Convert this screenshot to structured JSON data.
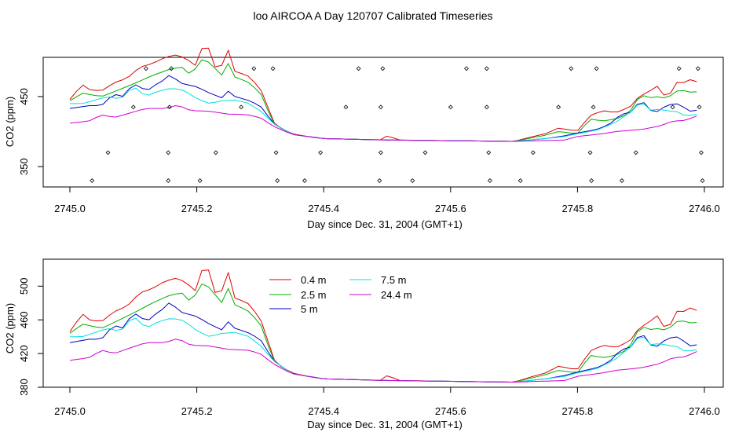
{
  "figure": {
    "title": "loo AIRCOA A  Day 120707  Calibrated Timeseries"
  },
  "chart_data": [
    {
      "type": "line",
      "title": "",
      "xlabel": "Day since Dec. 31, 2004 (GMT+1)",
      "ylabel": "CO2 (ppm)",
      "xlim": [
        2745.0,
        2746.0
      ],
      "ylim": [
        321,
        506
      ],
      "xticks": [
        "2745.0",
        "2745.2",
        "2745.4",
        "2745.6",
        "2745.8",
        "2746.0"
      ],
      "yticks": [
        "350",
        "450"
      ],
      "grid": false,
      "legend": null,
      "markers_series": {
        "name": "",
        "points": [
          [
            2745.035,
            330
          ],
          [
            2745.06,
            370
          ],
          [
            2745.1,
            435
          ],
          [
            2745.12,
            490
          ],
          [
            2745.155,
            330
          ],
          [
            2745.155,
            370
          ],
          [
            2745.157,
            435
          ],
          [
            2745.16,
            490
          ],
          [
            2745.205,
            330
          ],
          [
            2745.23,
            370
          ],
          [
            2745.27,
            435
          ],
          [
            2745.29,
            490
          ],
          [
            2745.32,
            490
          ],
          [
            2745.325,
            370
          ],
          [
            2745.327,
            330
          ],
          [
            2745.37,
            330
          ],
          [
            2745.395,
            370
          ],
          [
            2745.435,
            435
          ],
          [
            2745.455,
            490
          ],
          [
            2745.488,
            330
          ],
          [
            2745.49,
            370
          ],
          [
            2745.49,
            435
          ],
          [
            2745.493,
            490
          ],
          [
            2745.54,
            330
          ],
          [
            2745.56,
            370
          ],
          [
            2745.6,
            435
          ],
          [
            2745.625,
            490
          ],
          [
            2745.657,
            490
          ],
          [
            2745.657,
            435
          ],
          [
            2745.66,
            370
          ],
          [
            2745.662,
            330
          ],
          [
            2745.71,
            330
          ],
          [
            2745.73,
            370
          ],
          [
            2745.77,
            435
          ],
          [
            2745.79,
            490
          ],
          [
            2745.82,
            370
          ],
          [
            2745.822,
            330
          ],
          [
            2745.825,
            435
          ],
          [
            2745.83,
            490
          ],
          [
            2745.87,
            330
          ],
          [
            2745.892,
            370
          ],
          [
            2745.95,
            435
          ],
          [
            2745.96,
            490
          ],
          [
            2745.99,
            490
          ],
          [
            2745.992,
            435
          ],
          [
            2745.995,
            370
          ],
          [
            2745.997,
            330
          ]
        ]
      }
    },
    {
      "type": "line",
      "title": "",
      "xlabel": "Day since Dec. 31, 2004 (GMT+1)",
      "ylabel": "CO2 (ppm)",
      "xlim": [
        2745.0,
        2746.0
      ],
      "ylim": [
        380,
        532
      ],
      "xticks": [
        "2745.0",
        "2745.2",
        "2745.4",
        "2745.6",
        "2745.8",
        "2746.0"
      ],
      "yticks": [
        "380",
        "420",
        "460",
        "500"
      ],
      "grid": false,
      "legend": "top-center"
    }
  ],
  "series": [
    {
      "name": "0.4 m",
      "color": "#e00000",
      "keypoints": [
        [
          2745.0,
          446
        ],
        [
          2745.01,
          457
        ],
        [
          2745.02,
          467
        ],
        [
          2745.03,
          460
        ],
        [
          2745.05,
          458
        ],
        [
          2745.07,
          470
        ],
        [
          2745.09,
          476
        ],
        [
          2745.11,
          492
        ],
        [
          2745.13,
          497
        ],
        [
          2745.15,
          506
        ],
        [
          2745.17,
          510
        ],
        [
          2745.19,
          500
        ],
        [
          2745.2,
          493
        ],
        [
          2745.21,
          525
        ],
        [
          2745.22,
          518
        ],
        [
          2745.23,
          489
        ],
        [
          2745.24,
          495
        ],
        [
          2745.25,
          517
        ],
        [
          2745.26,
          486
        ],
        [
          2745.28,
          480
        ],
        [
          2745.3,
          462
        ],
        [
          2745.31,
          440
        ],
        [
          2745.32,
          414
        ],
        [
          2745.33,
          406
        ],
        [
          2745.35,
          397
        ],
        [
          2745.38,
          392
        ],
        [
          2745.4,
          390
        ],
        [
          2745.45,
          389
        ],
        [
          2745.49,
          388
        ],
        [
          2745.5,
          394
        ],
        [
          2745.52,
          388
        ],
        [
          2745.6,
          387
        ],
        [
          2745.7,
          386
        ],
        [
          2745.73,
          393
        ],
        [
          2745.75,
          397
        ],
        [
          2745.77,
          405
        ],
        [
          2745.79,
          402
        ],
        [
          2745.8,
          401
        ],
        [
          2745.82,
          423
        ],
        [
          2745.84,
          430
        ],
        [
          2745.86,
          427
        ],
        [
          2745.88,
          434
        ],
        [
          2745.89,
          440
        ],
        [
          2745.9,
          457
        ],
        [
          2745.91,
          450
        ],
        [
          2745.92,
          467
        ],
        [
          2745.93,
          463
        ],
        [
          2745.94,
          445
        ],
        [
          2745.96,
          475
        ],
        [
          2745.97,
          468
        ],
        [
          2745.98,
          476
        ],
        [
          2745.99,
          470
        ]
      ]
    },
    {
      "name": "2.5 m",
      "color": "#00b000",
      "keypoints": [
        [
          2745.0,
          444
        ],
        [
          2745.02,
          455
        ],
        [
          2745.05,
          450
        ],
        [
          2745.07,
          457
        ],
        [
          2745.1,
          468
        ],
        [
          2745.13,
          480
        ],
        [
          2745.16,
          490
        ],
        [
          2745.18,
          492
        ],
        [
          2745.19,
          480
        ],
        [
          2745.21,
          505
        ],
        [
          2745.22,
          498
        ],
        [
          2745.24,
          480
        ],
        [
          2745.25,
          498
        ],
        [
          2745.26,
          478
        ],
        [
          2745.28,
          471
        ],
        [
          2745.3,
          456
        ],
        [
          2745.31,
          435
        ],
        [
          2745.32,
          412
        ],
        [
          2745.35,
          396
        ],
        [
          2745.4,
          390
        ],
        [
          2745.45,
          389
        ],
        [
          2745.5,
          388
        ],
        [
          2745.6,
          387
        ],
        [
          2745.7,
          386
        ],
        [
          2745.75,
          395
        ],
        [
          2745.77,
          400
        ],
        [
          2745.8,
          397
        ],
        [
          2745.82,
          418
        ],
        [
          2745.84,
          415
        ],
        [
          2745.86,
          418
        ],
        [
          2745.88,
          425
        ],
        [
          2745.9,
          454
        ],
        [
          2745.91,
          448
        ],
        [
          2745.93,
          450
        ],
        [
          2745.94,
          447
        ],
        [
          2745.96,
          460
        ],
        [
          2745.98,
          456
        ],
        [
          2745.99,
          457
        ]
      ]
    },
    {
      "name": "5 m",
      "color": "#0000c0",
      "keypoints": [
        [
          2745.0,
          433
        ],
        [
          2745.03,
          437
        ],
        [
          2745.05,
          437
        ],
        [
          2745.07,
          455
        ],
        [
          2745.08,
          447
        ],
        [
          2745.1,
          468
        ],
        [
          2745.11,
          465
        ],
        [
          2745.12,
          457
        ],
        [
          2745.14,
          470
        ],
        [
          2745.15,
          474
        ],
        [
          2745.16,
          484
        ],
        [
          2745.17,
          470
        ],
        [
          2745.2,
          464
        ],
        [
          2745.22,
          455
        ],
        [
          2745.24,
          448
        ],
        [
          2745.25,
          458
        ],
        [
          2745.26,
          450
        ],
        [
          2745.28,
          445
        ],
        [
          2745.3,
          437
        ],
        [
          2745.31,
          425
        ],
        [
          2745.32,
          412
        ],
        [
          2745.35,
          396
        ],
        [
          2745.4,
          390
        ],
        [
          2745.5,
          388
        ],
        [
          2745.6,
          387
        ],
        [
          2745.7,
          386
        ],
        [
          2745.75,
          390
        ],
        [
          2745.78,
          394
        ],
        [
          2745.8,
          398
        ],
        [
          2745.83,
          403
        ],
        [
          2745.85,
          410
        ],
        [
          2745.87,
          426
        ],
        [
          2745.88,
          425
        ],
        [
          2745.89,
          432
        ],
        [
          2745.9,
          448
        ],
        [
          2745.91,
          434
        ],
        [
          2745.92,
          427
        ],
        [
          2745.93,
          430
        ],
        [
          2745.94,
          438
        ],
        [
          2745.96,
          440
        ],
        [
          2745.97,
          433
        ],
        [
          2745.98,
          428
        ],
        [
          2745.99,
          431
        ]
      ]
    },
    {
      "name": "7.5 m",
      "color": "#00e0e0",
      "keypoints": [
        [
          2745.0,
          440
        ],
        [
          2745.02,
          440
        ],
        [
          2745.04,
          445
        ],
        [
          2745.06,
          450
        ],
        [
          2745.08,
          446
        ],
        [
          2745.1,
          465
        ],
        [
          2745.12,
          450
        ],
        [
          2745.14,
          458
        ],
        [
          2745.16,
          462
        ],
        [
          2745.18,
          459
        ],
        [
          2745.2,
          447
        ],
        [
          2745.22,
          440
        ],
        [
          2745.24,
          444
        ],
        [
          2745.26,
          445
        ],
        [
          2745.28,
          441
        ],
        [
          2745.3,
          430
        ],
        [
          2745.32,
          412
        ],
        [
          2745.35,
          396
        ],
        [
          2745.4,
          390
        ],
        [
          2745.5,
          388
        ],
        [
          2745.6,
          387
        ],
        [
          2745.7,
          386
        ],
        [
          2745.75,
          390
        ],
        [
          2745.78,
          393
        ],
        [
          2745.8,
          397
        ],
        [
          2745.83,
          402
        ],
        [
          2745.86,
          413
        ],
        [
          2745.88,
          426
        ],
        [
          2745.89,
          430
        ],
        [
          2745.9,
          448
        ],
        [
          2745.91,
          430
        ],
        [
          2745.93,
          432
        ],
        [
          2745.94,
          430
        ],
        [
          2745.96,
          428
        ],
        [
          2745.97,
          422
        ],
        [
          2745.99,
          425
        ]
      ]
    },
    {
      "name": "24.4 m",
      "color": "#d000d0",
      "keypoints": [
        [
          2745.0,
          412
        ],
        [
          2745.03,
          415
        ],
        [
          2745.05,
          424
        ],
        [
          2745.07,
          420
        ],
        [
          2745.1,
          428
        ],
        [
          2745.12,
          433
        ],
        [
          2745.15,
          433
        ],
        [
          2745.17,
          438
        ],
        [
          2745.19,
          430
        ],
        [
          2745.22,
          429
        ],
        [
          2745.25,
          425
        ],
        [
          2745.28,
          424
        ],
        [
          2745.3,
          420
        ],
        [
          2745.32,
          408
        ],
        [
          2745.35,
          396
        ],
        [
          2745.4,
          390
        ],
        [
          2745.5,
          388
        ],
        [
          2745.6,
          387
        ],
        [
          2745.7,
          386
        ],
        [
          2745.78,
          388
        ],
        [
          2745.8,
          393
        ],
        [
          2745.84,
          397
        ],
        [
          2745.86,
          400
        ],
        [
          2745.9,
          403
        ],
        [
          2745.93,
          408
        ],
        [
          2745.95,
          415
        ],
        [
          2745.97,
          416
        ],
        [
          2745.99,
          423
        ]
      ]
    }
  ]
}
